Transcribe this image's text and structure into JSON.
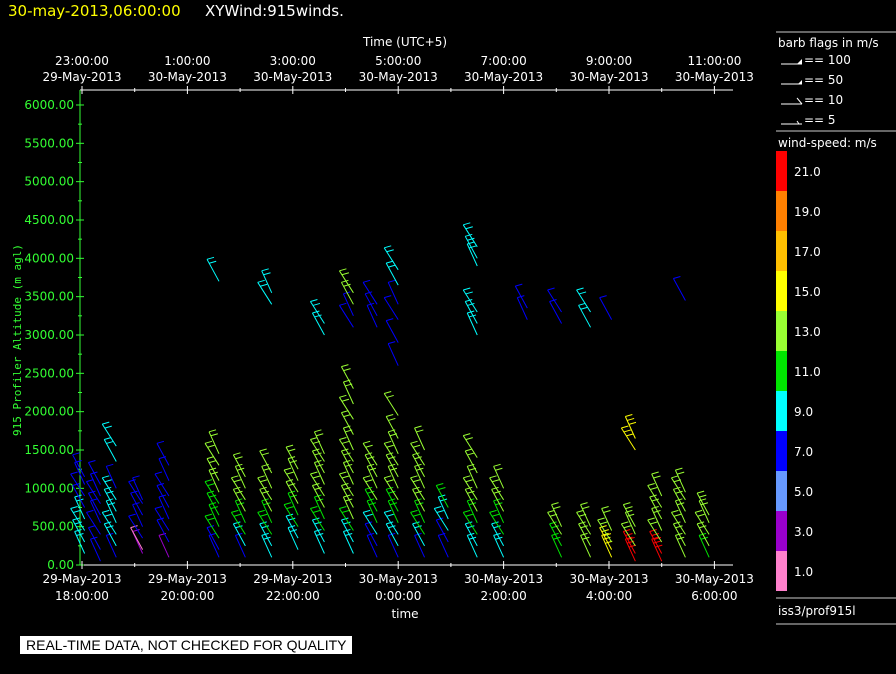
{
  "header": {
    "datetime": "30-may-2013,06:00:00",
    "title": "XYWind:915winds."
  },
  "top_axis": {
    "title": "Time (UTC+5)",
    "ticks": [
      {
        "time": "23:00:00",
        "date": "29-May-2013"
      },
      {
        "time": "1:00:00",
        "date": "30-May-2013"
      },
      {
        "time": "3:00:00",
        "date": "30-May-2013"
      },
      {
        "time": "5:00:00",
        "date": "30-May-2013"
      },
      {
        "time": "7:00:00",
        "date": "30-May-2013"
      },
      {
        "time": "9:00:00",
        "date": "30-May-2013"
      },
      {
        "time": "11:00:00",
        "date": "30-May-2013"
      }
    ]
  },
  "bottom_axis": {
    "title": "time",
    "ticks": [
      {
        "date": "29-May-2013",
        "time": "18:00:00"
      },
      {
        "date": "29-May-2013",
        "time": "20:00:00"
      },
      {
        "date": "29-May-2013",
        "time": "22:00:00"
      },
      {
        "date": "30-May-2013",
        "time": "0:00:00"
      },
      {
        "date": "30-May-2013",
        "time": "2:00:00"
      },
      {
        "date": "30-May-2013",
        "time": "4:00:00"
      },
      {
        "date": "30-May-2013",
        "time": "6:00:00"
      }
    ]
  },
  "y_axis": {
    "title": "915 Profiler Altitude (m agl)",
    "ticks": [
      "0.00",
      "500.00",
      "1000.00",
      "1500.00",
      "2000.00",
      "2500.00",
      "3000.00",
      "3500.00",
      "4000.00",
      "4500.00",
      "5000.00",
      "5500.00",
      "6000.00"
    ]
  },
  "barb_legend": {
    "title": "barb flags in m/s",
    "items": [
      "== 100",
      "== 50",
      "== 10",
      "== 5"
    ]
  },
  "speed_legend": {
    "title": "wind-speed: m/s",
    "bins": [
      {
        "label": "21.0",
        "color": "#ff0000"
      },
      {
        "label": "19.0",
        "color": "#ff8000"
      },
      {
        "label": "17.0",
        "color": "#ffbf00"
      },
      {
        "label": "15.0",
        "color": "#ffff00"
      },
      {
        "label": "13.0",
        "color": "#99ff33"
      },
      {
        "label": "11.0",
        "color": "#00e600"
      },
      {
        "label": "9.0",
        "color": "#00ffff"
      },
      {
        "label": "7.0",
        "color": "#0000ff"
      },
      {
        "label": "5.0",
        "color": "#6699ff"
      },
      {
        "label": "3.0",
        "color": "#9900cc"
      },
      {
        "label": "1.0",
        "color": "#ff80cc"
      }
    ]
  },
  "station": "iss3/prof915l",
  "disclaimer": "REAL-TIME DATA, NOT CHECKED FOR QUALITY",
  "chart_data": {
    "type": "scatter",
    "mark": "wind-barb",
    "x_units": "hours from 29-May-2013 18:00 (UTC+5 label offset +5h)",
    "xlim": [
      0,
      12.3
    ],
    "ylim": [
      0,
      6100
    ],
    "ylabel": "915 Profiler Altitude (m agl)",
    "xlabel": "time",
    "profiles": [
      {
        "t": 0.05,
        "pts": [
          [
            150,
            8
          ],
          [
            300,
            9
          ],
          [
            450,
            8
          ],
          [
            600,
            8
          ],
          [
            750,
            7
          ],
          [
            900,
            7
          ],
          [
            1050,
            7
          ],
          [
            1150,
            7
          ]
        ]
      },
      {
        "t": 0.35,
        "pts": [
          [
            50,
            6
          ],
          [
            200,
            6
          ],
          [
            400,
            7
          ],
          [
            550,
            6
          ],
          [
            650,
            6
          ],
          [
            800,
            7
          ],
          [
            900,
            6
          ],
          [
            1050,
            6
          ]
        ]
      },
      {
        "t": 0.65,
        "pts": [
          [
            100,
            7
          ],
          [
            250,
            8
          ],
          [
            400,
            8
          ],
          [
            550,
            8
          ],
          [
            700,
            9
          ],
          [
            850,
            9
          ],
          [
            1000,
            7
          ],
          [
            1350,
            9
          ],
          [
            1550,
            9
          ]
        ]
      },
      {
        "t": 1.15,
        "pts": [
          [
            150,
            3
          ],
          [
            200,
            1
          ],
          [
            350,
            7
          ],
          [
            500,
            7
          ],
          [
            650,
            7
          ],
          [
            800,
            7
          ],
          [
            850,
            6
          ]
        ]
      },
      {
        "t": 1.65,
        "pts": [
          [
            100,
            2
          ],
          [
            300,
            7
          ],
          [
            450,
            7
          ],
          [
            600,
            7
          ],
          [
            750,
            7
          ],
          [
            900,
            7
          ],
          [
            1100,
            7
          ],
          [
            1300,
            7
          ]
        ]
      },
      {
        "t": 2.6,
        "pts": [
          [
            100,
            7
          ],
          [
            200,
            7
          ],
          [
            350,
            11
          ],
          [
            500,
            11
          ],
          [
            650,
            11
          ],
          [
            800,
            11
          ],
          [
            950,
            12
          ],
          [
            1100,
            12
          ],
          [
            1300,
            12
          ],
          [
            1450,
            12
          ],
          [
            3700,
            9
          ]
        ]
      },
      {
        "t": 3.1,
        "pts": [
          [
            100,
            7
          ],
          [
            250,
            9
          ],
          [
            400,
            11
          ],
          [
            550,
            11
          ],
          [
            700,
            12
          ],
          [
            850,
            12
          ],
          [
            1000,
            12
          ],
          [
            1150,
            12
          ]
        ]
      },
      {
        "t": 3.6,
        "pts": [
          [
            100,
            9
          ],
          [
            250,
            9
          ],
          [
            400,
            11
          ],
          [
            550,
            11
          ],
          [
            700,
            12
          ],
          [
            850,
            12
          ],
          [
            1000,
            12
          ],
          [
            1200,
            12
          ],
          [
            3400,
            9
          ],
          [
            3550,
            9
          ]
        ]
      },
      {
        "t": 4.1,
        "pts": [
          [
            200,
            9
          ],
          [
            350,
            9
          ],
          [
            500,
            11
          ],
          [
            650,
            11
          ],
          [
            800,
            12
          ],
          [
            950,
            12
          ],
          [
            1100,
            12
          ],
          [
            1250,
            12
          ]
        ]
      },
      {
        "t": 4.6,
        "pts": [
          [
            150,
            9
          ],
          [
            300,
            9
          ],
          [
            450,
            11
          ],
          [
            600,
            11
          ],
          [
            750,
            12
          ],
          [
            900,
            12
          ],
          [
            1050,
            12
          ],
          [
            1200,
            12
          ],
          [
            1350,
            12
          ],
          [
            1450,
            12
          ],
          [
            3000,
            9
          ],
          [
            3150,
            9
          ]
        ]
      },
      {
        "t": 5.15,
        "pts": [
          [
            150,
            9
          ],
          [
            300,
            9
          ],
          [
            450,
            11
          ],
          [
            600,
            12
          ],
          [
            750,
            12
          ],
          [
            900,
            12
          ],
          [
            1050,
            12
          ],
          [
            1200,
            12
          ],
          [
            1350,
            12
          ],
          [
            1500,
            12
          ],
          [
            1700,
            12
          ],
          [
            1900,
            12
          ],
          [
            2100,
            12
          ],
          [
            2300,
            12
          ],
          [
            3100,
            7
          ],
          [
            3250,
            7
          ],
          [
            3400,
            12
          ],
          [
            3550,
            12
          ]
        ]
      },
      {
        "t": 5.6,
        "pts": [
          [
            100,
            7
          ],
          [
            250,
            7
          ],
          [
            400,
            9
          ],
          [
            550,
            11
          ],
          [
            700,
            11
          ],
          [
            850,
            12
          ],
          [
            1000,
            12
          ],
          [
            1150,
            12
          ],
          [
            1300,
            12
          ],
          [
            3100,
            7
          ],
          [
            3250,
            7
          ],
          [
            3400,
            7
          ]
        ]
      },
      {
        "t": 6.0,
        "pts": [
          [
            100,
            7
          ],
          [
            250,
            9
          ],
          [
            400,
            9
          ],
          [
            550,
            11
          ],
          [
            700,
            11
          ],
          [
            850,
            12
          ],
          [
            1000,
            12
          ],
          [
            1150,
            12
          ],
          [
            1300,
            12
          ],
          [
            1450,
            12
          ],
          [
            1650,
            12
          ],
          [
            1950,
            12
          ],
          [
            2600,
            7
          ],
          [
            2900,
            7
          ],
          [
            3200,
            7
          ],
          [
            3400,
            7
          ],
          [
            3650,
            9
          ],
          [
            3850,
            9
          ]
        ]
      },
      {
        "t": 6.5,
        "pts": [
          [
            100,
            7
          ],
          [
            250,
            9
          ],
          [
            400,
            11
          ],
          [
            550,
            11
          ],
          [
            700,
            12
          ],
          [
            850,
            12
          ],
          [
            1000,
            12
          ],
          [
            1150,
            12
          ],
          [
            1300,
            12
          ],
          [
            1500,
            12
          ]
        ]
      },
      {
        "t": 6.95,
        "pts": [
          [
            100,
            7
          ],
          [
            300,
            7
          ],
          [
            450,
            9
          ],
          [
            600,
            9
          ],
          [
            750,
            11
          ]
        ]
      },
      {
        "t": 7.5,
        "pts": [
          [
            100,
            9
          ],
          [
            250,
            9
          ],
          [
            400,
            11
          ],
          [
            550,
            11
          ],
          [
            700,
            12
          ],
          [
            850,
            12
          ],
          [
            1000,
            12
          ],
          [
            1200,
            12
          ],
          [
            1400,
            12
          ],
          [
            3000,
            9
          ],
          [
            3150,
            9
          ],
          [
            3300,
            9
          ],
          [
            3900,
            9
          ],
          [
            4000,
            9
          ],
          [
            4150,
            9
          ]
        ]
      },
      {
        "t": 8.0,
        "pts": [
          [
            100,
            9
          ],
          [
            250,
            9
          ],
          [
            400,
            11
          ],
          [
            550,
            11
          ],
          [
            700,
            12
          ],
          [
            850,
            12
          ],
          [
            1000,
            12
          ]
        ]
      },
      {
        "t": 8.45,
        "pts": [
          [
            3200,
            7
          ],
          [
            3350,
            7
          ]
        ]
      },
      {
        "t": 9.1,
        "pts": [
          [
            100,
            11
          ],
          [
            250,
            11
          ],
          [
            400,
            12
          ],
          [
            500,
            12
          ],
          [
            3150,
            7
          ],
          [
            3300,
            7
          ]
        ]
      },
      {
        "t": 9.65,
        "pts": [
          [
            100,
            12
          ],
          [
            250,
            12
          ],
          [
            400,
            12
          ],
          [
            500,
            12
          ],
          [
            3100,
            9
          ],
          [
            3300,
            9
          ]
        ]
      },
      {
        "t": 10.05,
        "pts": [
          [
            100,
            14
          ],
          [
            200,
            14
          ],
          [
            300,
            12
          ],
          [
            450,
            12
          ],
          [
            3200,
            7
          ]
        ]
      },
      {
        "t": 10.5,
        "pts": [
          [
            50,
            21
          ],
          [
            150,
            21
          ],
          [
            250,
            12
          ],
          [
            400,
            12
          ],
          [
            500,
            12
          ],
          [
            1500,
            14
          ],
          [
            1650,
            14
          ]
        ]
      },
      {
        "t": 11.0,
        "pts": [
          [
            50,
            21
          ],
          [
            150,
            21
          ],
          [
            300,
            12
          ],
          [
            450,
            12
          ],
          [
            600,
            12
          ],
          [
            750,
            12
          ],
          [
            900,
            12
          ]
        ]
      },
      {
        "t": 11.45,
        "pts": [
          [
            100,
            12
          ],
          [
            250,
            12
          ],
          [
            400,
            12
          ],
          [
            550,
            12
          ],
          [
            700,
            12
          ],
          [
            850,
            12
          ],
          [
            950,
            12
          ],
          [
            3450,
            7
          ]
        ]
      },
      {
        "t": 11.9,
        "pts": [
          [
            100,
            11
          ],
          [
            250,
            12
          ],
          [
            400,
            12
          ],
          [
            550,
            12
          ],
          [
            650,
            12
          ]
        ]
      }
    ]
  }
}
